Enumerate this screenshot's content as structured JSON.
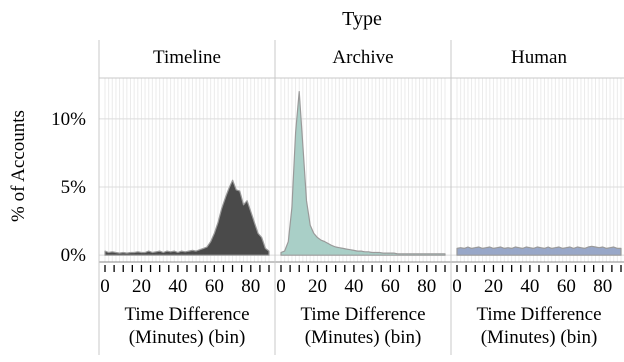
{
  "chart_data": {
    "type": "area",
    "title": "",
    "facet_label": "Type",
    "panels": [
      {
        "name": "Timeline",
        "color": "#4a4a4a"
      },
      {
        "name": "Archive",
        "color": "#a9cfc7"
      },
      {
        "name": "Human",
        "color": "#98a7c8"
      }
    ],
    "xlabel_lines": [
      "Time Difference",
      "(Minutes) (bin)"
    ],
    "ylabel": "% of Accounts",
    "x_ticks": [
      "0",
      "20",
      "40",
      "60",
      "80"
    ],
    "y_ticks": [
      "0%",
      "5%",
      "10%"
    ],
    "xlim": [
      0,
      90
    ],
    "ylim": [
      -0.5,
      13
    ],
    "grid": true,
    "x": [
      0,
      2,
      4,
      6,
      8,
      10,
      12,
      14,
      16,
      18,
      20,
      22,
      24,
      26,
      28,
      30,
      32,
      34,
      36,
      38,
      40,
      42,
      44,
      46,
      48,
      50,
      52,
      54,
      56,
      58,
      60,
      62,
      64,
      66,
      68,
      70,
      72,
      74,
      76,
      78,
      80,
      82,
      84,
      86,
      88,
      90
    ],
    "series": [
      {
        "name": "Timeline",
        "values": [
          0.3,
          0.2,
          0.25,
          0.2,
          0.15,
          0.2,
          0.15,
          0.2,
          0.2,
          0.25,
          0.2,
          0.2,
          0.3,
          0.2,
          0.25,
          0.3,
          0.2,
          0.3,
          0.25,
          0.3,
          0.2,
          0.3,
          0.25,
          0.3,
          0.35,
          0.3,
          0.4,
          0.5,
          0.6,
          1.0,
          1.6,
          2.4,
          3.4,
          4.2,
          4.9,
          5.5,
          4.8,
          4.7,
          3.7,
          4.0,
          3.2,
          2.4,
          1.6,
          1.3,
          0.5,
          0.3
        ]
      },
      {
        "name": "Archive",
        "values": [
          0.2,
          0.3,
          1.0,
          3.5,
          9.0,
          12.0,
          8.0,
          4.0,
          2.2,
          1.6,
          1.3,
          1.1,
          1.0,
          0.85,
          0.7,
          0.6,
          0.55,
          0.5,
          0.45,
          0.4,
          0.35,
          0.3,
          0.3,
          0.25,
          0.25,
          0.2,
          0.2,
          0.2,
          0.15,
          0.15,
          0.15,
          0.15,
          0.1,
          0.1,
          0.1,
          0.1,
          0.1,
          0.1,
          0.1,
          0.1,
          0.1,
          0.1,
          0.1,
          0.1,
          0.1,
          0.1
        ]
      },
      {
        "name": "Human",
        "values": [
          0.5,
          0.55,
          0.5,
          0.6,
          0.5,
          0.55,
          0.6,
          0.5,
          0.55,
          0.6,
          0.5,
          0.55,
          0.6,
          0.5,
          0.55,
          0.5,
          0.6,
          0.55,
          0.5,
          0.6,
          0.55,
          0.5,
          0.6,
          0.55,
          0.5,
          0.6,
          0.5,
          0.55,
          0.6,
          0.5,
          0.55,
          0.6,
          0.5,
          0.6,
          0.55,
          0.5,
          0.6,
          0.65,
          0.6,
          0.55,
          0.6,
          0.5,
          0.55,
          0.6,
          0.5,
          0.5
        ]
      }
    ]
  }
}
